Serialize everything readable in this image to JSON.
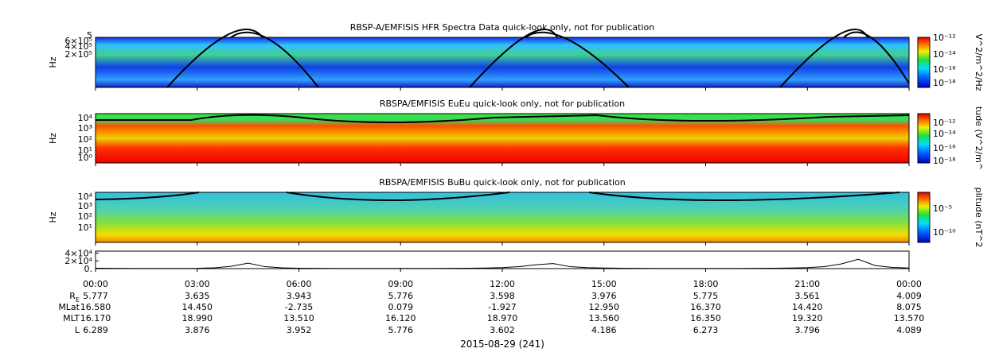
{
  "panels": [
    {
      "title": "RBSP-A/EMFISIS  HFR Spectra Data quick-look only, not for publication",
      "ylabel": "Hz",
      "yticks": [
        "5",
        "6×10⁵",
        "4×10⁵",
        "2×10⁵"
      ],
      "colorbar_label": "V^2/m^2/Hz",
      "colorbar_ticks": [
        "10⁻¹²",
        "10⁻¹⁴",
        "10⁻¹⁶",
        "10⁻¹⁸"
      ]
    },
    {
      "title": "RBSPA/EMFISIS  EuEu quick-look only, not for publication",
      "ylabel": "Hz",
      "yticks": [
        "10⁴",
        "10³",
        "10²",
        "10¹",
        "10⁰"
      ],
      "colorbar_label": "tude (V^2/m^",
      "colorbar_ticks": [
        "10⁻¹²",
        "10⁻¹⁴",
        "10⁻¹⁶",
        "10⁻¹⁸"
      ]
    },
    {
      "title": "RBSPA/EMFISIS  BuBu quick-look only, not for publication",
      "ylabel": "Hz",
      "yticks": [
        "10⁴",
        "10³",
        "10²",
        "10¹"
      ],
      "colorbar_label": "plitude (nT^2",
      "colorbar_ticks": [
        "10⁻⁵",
        "10⁻¹⁰"
      ]
    }
  ],
  "chart_data": {
    "type": "line",
    "color": "#000000",
    "x": [
      0,
      0.5,
      1,
      1.5,
      2,
      2.5,
      3,
      3.5,
      4,
      4.5,
      5,
      5.5,
      6,
      6.5,
      7,
      7.5,
      8,
      8.5,
      9,
      9.5,
      10,
      10.5,
      11,
      11.5,
      12,
      12.5,
      13,
      13.5,
      14,
      14.5,
      15,
      15.5,
      16,
      16.5,
      17,
      17.5,
      18,
      18.5,
      19,
      19.5,
      20,
      20.5,
      21,
      21.5,
      22,
      22.5,
      23,
      23.5,
      24
    ],
    "values": [
      1000,
      800,
      600,
      500,
      500,
      600,
      800,
      2000,
      6000,
      14000,
      5000,
      2000,
      1000,
      700,
      500,
      400,
      400,
      400,
      500,
      500,
      600,
      800,
      1000,
      1500,
      2500,
      5000,
      10000,
      13000,
      5000,
      2500,
      1500,
      1000,
      700,
      500,
      400,
      400,
      400,
      500,
      600,
      800,
      1000,
      1500,
      2500,
      5000,
      12000,
      24000,
      8000,
      3000,
      1500
    ],
    "xlim": [
      0,
      24
    ],
    "xticks": [
      {
        "value": 0,
        "label": "00:00"
      },
      {
        "value": 3,
        "label": "03:00"
      },
      {
        "value": 6,
        "label": "06:00"
      },
      {
        "value": 9,
        "label": "09:00"
      },
      {
        "value": 12,
        "label": "12:00"
      },
      {
        "value": 15,
        "label": "15:00"
      },
      {
        "value": 18,
        "label": "18:00"
      },
      {
        "value": 21,
        "label": "21:00"
      },
      {
        "value": 24,
        "label": "00:00"
      }
    ],
    "ylim": [
      0,
      45000
    ],
    "yticks": [
      {
        "value": 40000,
        "label": "4×10⁴"
      },
      {
        "value": 20000,
        "label": "2×10⁴"
      },
      {
        "value": 0,
        "label": "0."
      }
    ]
  },
  "ephemeris": [
    {
      "label": "R",
      "sub": "E",
      "values": [
        "5.777",
        "3.635",
        "3.943",
        "5.776",
        "3.598",
        "3.976",
        "5.775",
        "3.561",
        "4.009"
      ]
    },
    {
      "label": "MLat",
      "values": [
        "16.580",
        "14.450",
        "-2.735",
        "0.079",
        "-1.927",
        "12.950",
        "16.370",
        "14.420",
        "8.075"
      ]
    },
    {
      "label": "MLT",
      "values": [
        "16.170",
        "18.990",
        "13.510",
        "16.120",
        "18.970",
        "13.560",
        "16.350",
        "19.320",
        "13.570"
      ]
    },
    {
      "label": "L",
      "values": [
        "6.289",
        "3.876",
        "3.952",
        "5.776",
        "3.602",
        "4.186",
        "6.273",
        "3.796",
        "4.089"
      ]
    }
  ],
  "date_label": "2015-08-29 (241)"
}
